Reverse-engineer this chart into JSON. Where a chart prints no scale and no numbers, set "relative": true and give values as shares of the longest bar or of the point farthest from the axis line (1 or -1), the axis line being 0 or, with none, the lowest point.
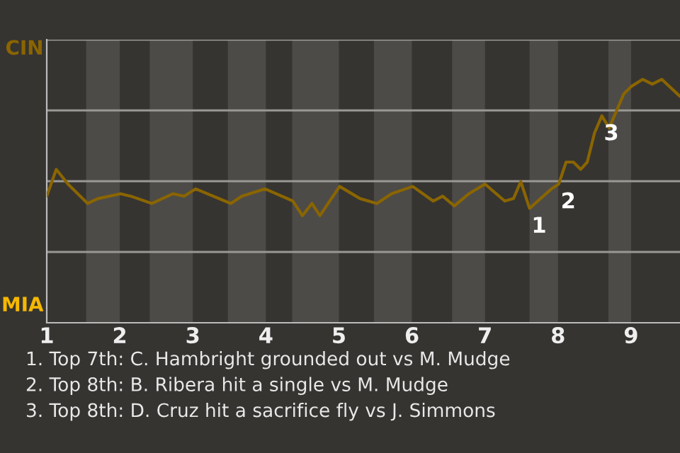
{
  "chart_data": {
    "type": "line",
    "relative": true,
    "x": [
      1.0,
      1.13,
      1.29,
      1.56,
      1.7,
      2.01,
      2.15,
      2.44,
      2.73,
      2.88,
      3.04,
      3.52,
      3.67,
      3.99,
      4.37,
      4.5,
      4.63,
      4.74,
      5.01,
      5.29,
      5.52,
      5.72,
      6.01,
      6.29,
      6.42,
      6.58,
      6.78,
      7.0,
      7.27,
      7.39,
      7.49,
      7.61,
      7.91,
      8.01,
      8.11,
      8.21,
      8.31,
      8.4,
      8.5,
      8.6,
      8.7,
      8.9,
      9.0,
      9.16,
      9.29,
      9.42,
      9.67
    ],
    "series": [
      {
        "color": "#8a6500",
        "values": [
          0.52,
          0.63,
          0.57,
          0.49,
          0.51,
          0.53,
          0.52,
          0.49,
          0.53,
          0.52,
          0.55,
          0.49,
          0.52,
          0.55,
          0.5,
          0.44,
          0.49,
          0.44,
          0.56,
          0.51,
          0.49,
          0.53,
          0.56,
          0.5,
          0.52,
          0.48,
          0.53,
          0.57,
          0.5,
          0.51,
          0.58,
          0.47,
          0.55,
          0.57,
          0.66,
          0.66,
          0.63,
          0.66,
          0.78,
          0.85,
          0.8,
          0.94,
          0.97,
          1,
          0.98,
          1,
          0.93
        ]
      }
    ],
    "xlim": [
      1,
      9.67
    ],
    "xticks": [
      1,
      2,
      3,
      4,
      5,
      6,
      7,
      8,
      9
    ],
    "grid": "y",
    "bands": [
      {
        "axis": "x",
        "from": 1.54,
        "to": 2,
        "color": "#4d4b48"
      },
      {
        "axis": "x",
        "from": 2.41,
        "to": 3,
        "color": "#4d4b48"
      },
      {
        "axis": "x",
        "from": 3.48,
        "to": 4,
        "color": "#4d4b48"
      },
      {
        "axis": "x",
        "from": 4.36,
        "to": 5,
        "color": "#4d4b48"
      },
      {
        "axis": "x",
        "from": 5.48,
        "to": 6,
        "color": "#4d4b48"
      },
      {
        "axis": "x",
        "from": 6.55,
        "to": 7,
        "color": "#4d4b48"
      },
      {
        "axis": "x",
        "from": 7.61,
        "to": 8,
        "color": "#4d4b48"
      },
      {
        "axis": "x",
        "from": 8.69,
        "to": 9,
        "color": "#4d4b48"
      }
    ],
    "annotations": [
      "CIN",
      "MIA",
      {
        "text": "1",
        "x": 7.61,
        "y": 0.47
      },
      {
        "text": "2",
        "x": 8.01,
        "y": 0.57
      },
      {
        "text": "3",
        "x": 8.6,
        "y": 0.85
      },
      "1. Top 7th: C. Hambright grounded out vs M. Mudge",
      "2. Top 8th: B. Ribera hit a single vs M. Mudge",
      "3. Top 8th: D. Cruz hit a sacrifice fly vs J. Simmons"
    ]
  }
}
